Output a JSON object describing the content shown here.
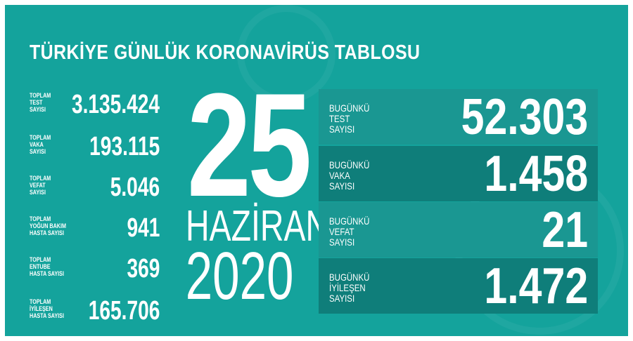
{
  "title": "TÜRKİYE GÜNLÜK KORONAVİRÜS TABLOSU",
  "colors": {
    "background": "#14a39c",
    "row_light": "#1a9792",
    "row_dark": "#0f7e7a",
    "text": "#ffffff"
  },
  "totals": [
    {
      "label": [
        "TOPLAM",
        "TEST",
        "SAYISI"
      ],
      "value": "3.135.424"
    },
    {
      "label": [
        "TOPLAM",
        "VAKA",
        "SAYISI"
      ],
      "value": "193.115"
    },
    {
      "label": [
        "TOPLAM",
        "VEFAT",
        "SAYISI"
      ],
      "value": "5.046"
    },
    {
      "label": [
        "TOPLAM",
        "YOĞUN BAKIM",
        "HASTA SAYISI"
      ],
      "value": "941"
    },
    {
      "label": [
        "TOPLAM",
        "ENTUBE",
        "HASTA SAYISI"
      ],
      "value": "369"
    },
    {
      "label": [
        "TOPLAM",
        "İYİLEŞEN",
        "HASTA SAYISI"
      ],
      "value": "165.706"
    }
  ],
  "date": {
    "day": "25",
    "month": "HAZİRAN",
    "year": "2020"
  },
  "today": [
    {
      "label": [
        "BUGÜNKÜ",
        "TEST",
        "SAYISI"
      ],
      "value": "52.303"
    },
    {
      "label": [
        "BUGÜNKÜ",
        "VAKA",
        "SAYISI"
      ],
      "value": "1.458"
    },
    {
      "label": [
        "BUGÜNKÜ",
        "VEFAT",
        "SAYISI"
      ],
      "value": "21"
    },
    {
      "label": [
        "BUGÜNKÜ",
        "İYİLEŞEN",
        "SAYISI"
      ],
      "value": "1.472"
    }
  ]
}
